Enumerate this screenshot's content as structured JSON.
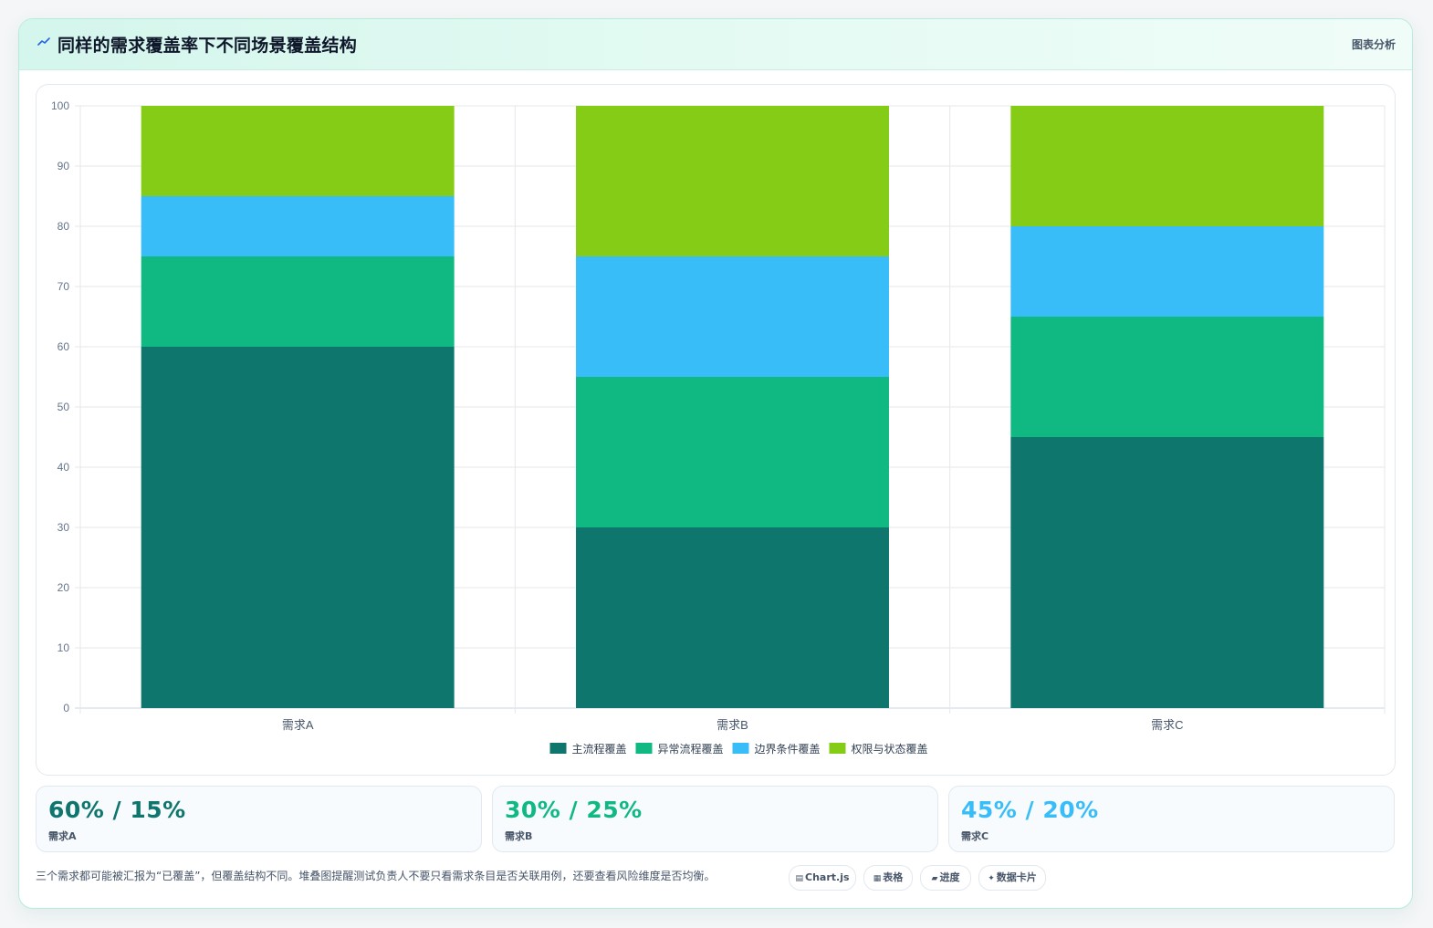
{
  "header": {
    "title": "同样的需求覆盖率下不同场景覆盖结构",
    "badge": "图表分析",
    "icon": "trend-line-icon"
  },
  "colors": {
    "main_flow": "#0f766e",
    "exception_flow": "#10b981",
    "boundary": "#38bdf8",
    "permission": "#84cc16"
  },
  "chart_data": {
    "type": "bar",
    "stacked": true,
    "categories": [
      "需求A",
      "需求B",
      "需求C"
    ],
    "series": [
      {
        "name": "主流程覆盖",
        "color": "#0f766e",
        "values": [
          60,
          30,
          45
        ]
      },
      {
        "name": "异常流程覆盖",
        "color": "#10b981",
        "values": [
          15,
          25,
          20
        ]
      },
      {
        "name": "边界条件覆盖",
        "color": "#38bdf8",
        "values": [
          10,
          20,
          15
        ]
      },
      {
        "name": "权限与状态覆盖",
        "color": "#84cc16",
        "values": [
          15,
          25,
          20
        ]
      }
    ],
    "ylim": [
      0,
      100
    ],
    "yticks": [
      0,
      10,
      20,
      30,
      40,
      50,
      60,
      70,
      80,
      90,
      100
    ],
    "grid": true,
    "legend": "bottom"
  },
  "stats": [
    {
      "value": "60% / 15%",
      "label": "需求A",
      "color": "#0f766e"
    },
    {
      "value": "30% / 25%",
      "label": "需求B",
      "color": "#10b981"
    },
    {
      "value": "45% / 20%",
      "label": "需求C",
      "color": "#38bdf8"
    }
  ],
  "note": "三个需求都可能被汇报为“已覆盖”，但覆盖结构不同。堆叠图提醒测试负责人不要只看需求条目是否关联用例，还要查看风险维度是否均衡。",
  "tags": [
    {
      "icon": "▤",
      "label": "Chart.js"
    },
    {
      "icon": "▦",
      "label": "表格"
    },
    {
      "icon": "▰",
      "label": "进度"
    },
    {
      "icon": "✦",
      "label": "数据卡片"
    }
  ]
}
